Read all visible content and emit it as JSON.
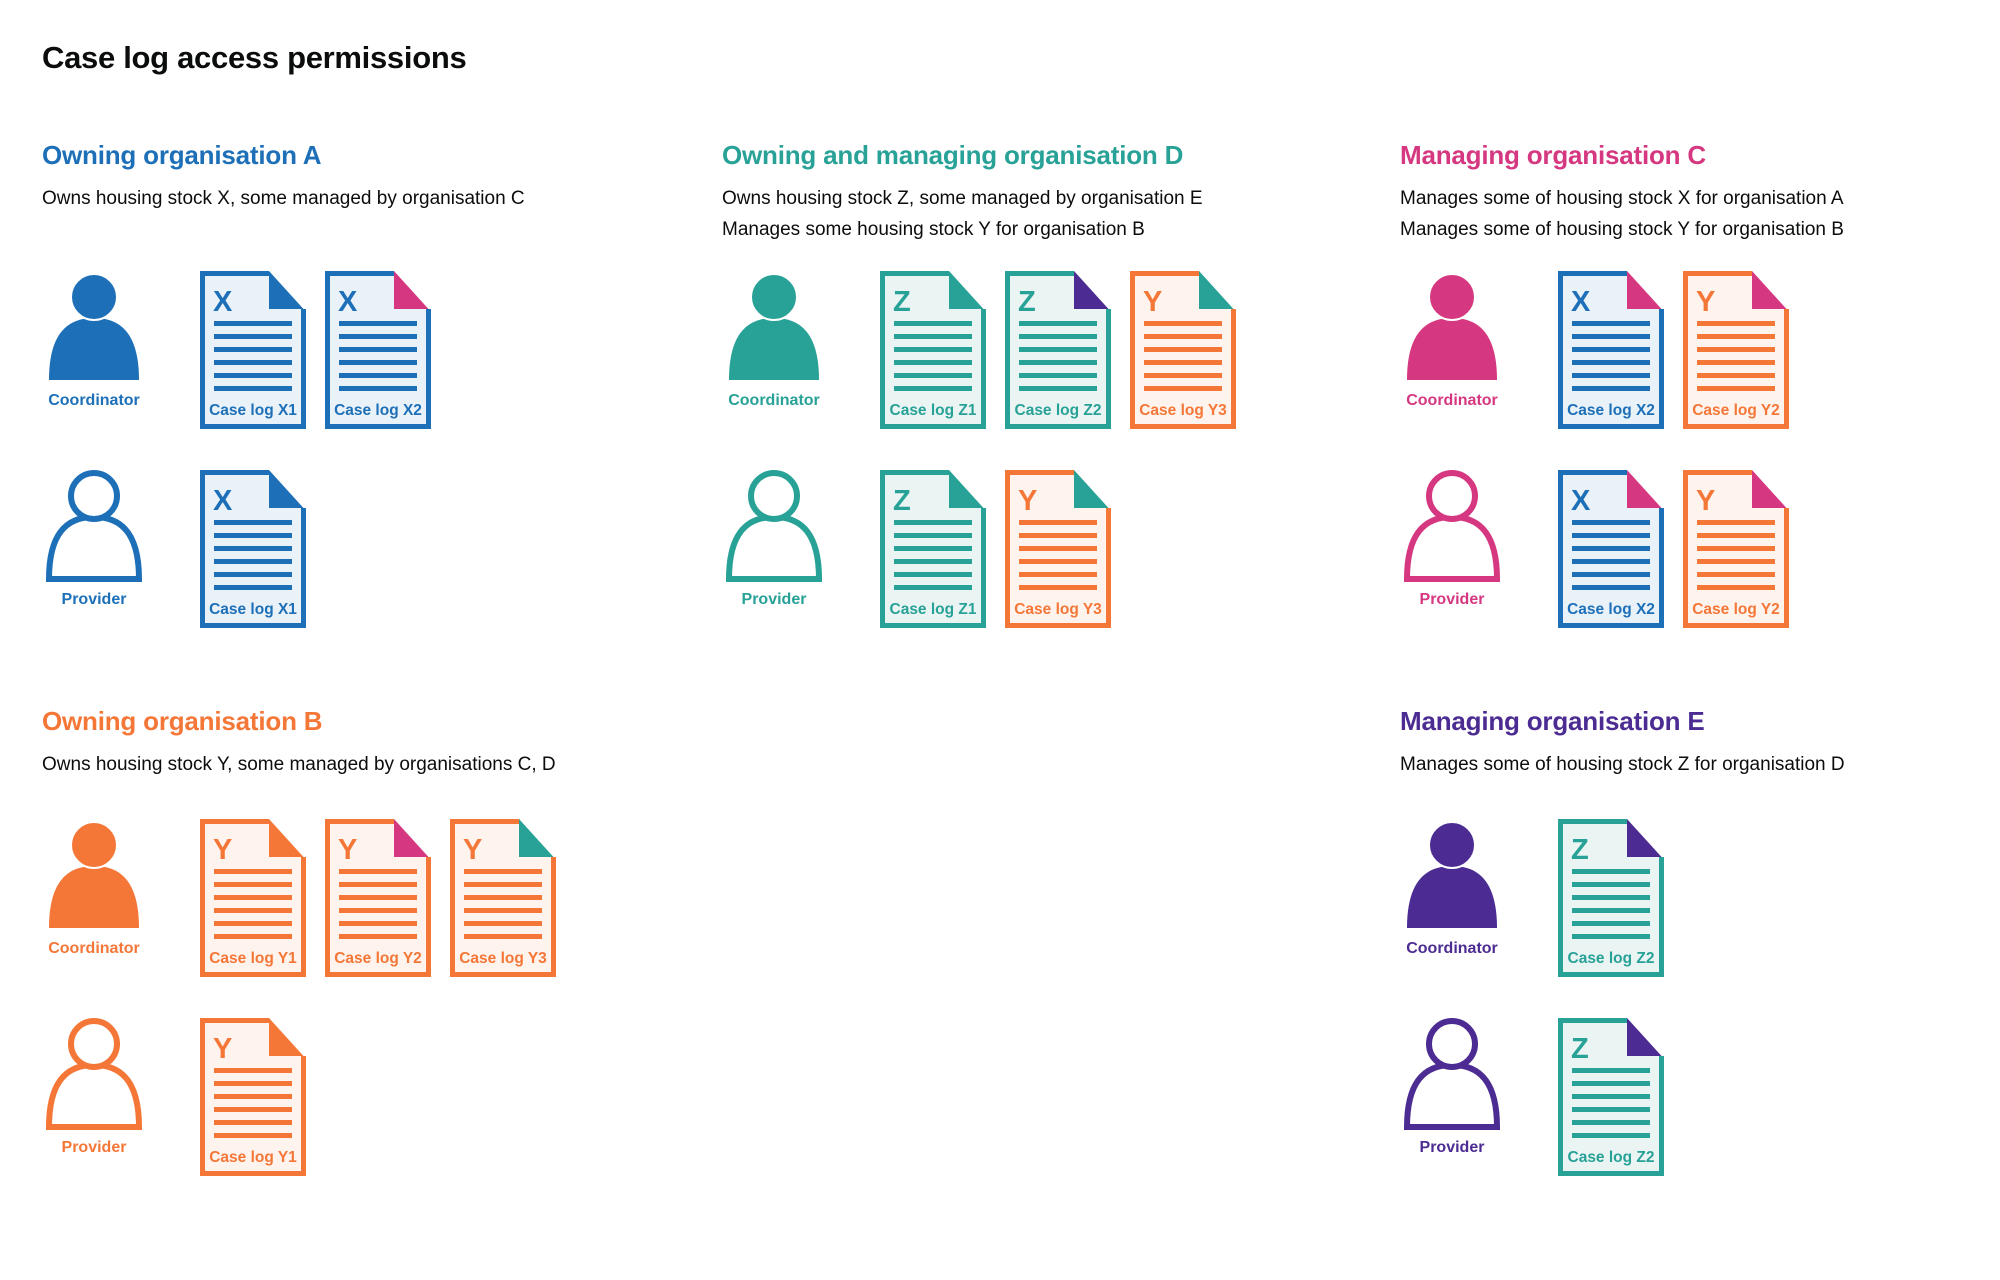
{
  "page": {
    "title": "Case log access permissions"
  },
  "colors": {
    "text": "#0b0c0c",
    "blue": "#1d70b8",
    "teal": "#28a197",
    "pink": "#d53880",
    "orange": "#f47738",
    "purple": "#4c2c92",
    "tint_blue": "#e9f1f9",
    "tint_teal": "#eaf5f3",
    "tint_orange": "#fef3ed",
    "white": "#ffffff"
  },
  "icons": {
    "coordinator": "person-filled-icon",
    "provider": "person-outline-icon",
    "case_log": "document-folded-corner-icon"
  },
  "sections": [
    {
      "id": "org-a",
      "title": "Owning organisation A",
      "color": "blue",
      "description": [
        "Owns housing stock X, some managed by organisation C"
      ],
      "rows": [
        {
          "role": "Coordinator",
          "icon_variant": "filled",
          "docs": [
            {
              "letter": "X",
              "label": "Case log X1",
              "doc_color": "blue",
              "fold_color": "blue"
            },
            {
              "letter": "X",
              "label": "Case log X2",
              "doc_color": "blue",
              "fold_color": "pink"
            }
          ]
        },
        {
          "role": "Provider",
          "icon_variant": "outline",
          "docs": [
            {
              "letter": "X",
              "label": "Case log X1",
              "doc_color": "blue",
              "fold_color": "blue"
            }
          ]
        }
      ]
    },
    {
      "id": "org-d",
      "title": "Owning and managing organisation D",
      "color": "teal",
      "description": [
        "Owns housing stock Z, some managed by organisation E",
        "Manages some housing stock Y for organisation B"
      ],
      "rows": [
        {
          "role": "Coordinator",
          "icon_variant": "filled",
          "docs": [
            {
              "letter": "Z",
              "label": "Case log Z1",
              "doc_color": "teal",
              "fold_color": "teal"
            },
            {
              "letter": "Z",
              "label": "Case log Z2",
              "doc_color": "teal",
              "fold_color": "purple"
            },
            {
              "letter": "Y",
              "label": "Case log Y3",
              "doc_color": "orange",
              "fold_color": "teal"
            }
          ]
        },
        {
          "role": "Provider",
          "icon_variant": "outline",
          "docs": [
            {
              "letter": "Z",
              "label": "Case log Z1",
              "doc_color": "teal",
              "fold_color": "teal"
            },
            {
              "letter": "Y",
              "label": "Case log Y3",
              "doc_color": "orange",
              "fold_color": "teal"
            }
          ]
        }
      ]
    },
    {
      "id": "org-c",
      "title": "Managing organisation C",
      "color": "pink",
      "description": [
        "Manages some of housing stock X for organisation A",
        "Manages some of housing stock Y for organisation B"
      ],
      "rows": [
        {
          "role": "Coordinator",
          "icon_variant": "filled",
          "docs": [
            {
              "letter": "X",
              "label": "Case log X2",
              "doc_color": "blue",
              "fold_color": "pink"
            },
            {
              "letter": "Y",
              "label": "Case log Y2",
              "doc_color": "orange",
              "fold_color": "pink"
            }
          ]
        },
        {
          "role": "Provider",
          "icon_variant": "outline",
          "docs": [
            {
              "letter": "X",
              "label": "Case log X2",
              "doc_color": "blue",
              "fold_color": "pink"
            },
            {
              "letter": "Y",
              "label": "Case log Y2",
              "doc_color": "orange",
              "fold_color": "pink"
            }
          ]
        }
      ]
    },
    {
      "id": "org-b",
      "title": "Owning organisation B",
      "color": "orange",
      "description": [
        "Owns housing stock Y, some managed by organisations C, D"
      ],
      "rows": [
        {
          "role": "Coordinator",
          "icon_variant": "filled",
          "docs": [
            {
              "letter": "Y",
              "label": "Case log Y1",
              "doc_color": "orange",
              "fold_color": "orange"
            },
            {
              "letter": "Y",
              "label": "Case log Y2",
              "doc_color": "orange",
              "fold_color": "pink"
            },
            {
              "letter": "Y",
              "label": "Case log Y3",
              "doc_color": "orange",
              "fold_color": "teal"
            }
          ]
        },
        {
          "role": "Provider",
          "icon_variant": "outline",
          "docs": [
            {
              "letter": "Y",
              "label": "Case log Y1",
              "doc_color": "orange",
              "fold_color": "orange"
            }
          ]
        }
      ]
    },
    {
      "id": "org-e",
      "title": "Managing organisation E",
      "color": "purple",
      "description": [
        "Manages some of housing stock Z for organisation D"
      ],
      "rows": [
        {
          "role": "Coordinator",
          "icon_variant": "filled",
          "docs": [
            {
              "letter": "Z",
              "label": "Case log Z2",
              "doc_color": "teal",
              "fold_color": "purple"
            }
          ]
        },
        {
          "role": "Provider",
          "icon_variant": "outline",
          "docs": [
            {
              "letter": "Z",
              "label": "Case log Z2",
              "doc_color": "teal",
              "fold_color": "purple"
            }
          ]
        }
      ]
    }
  ]
}
